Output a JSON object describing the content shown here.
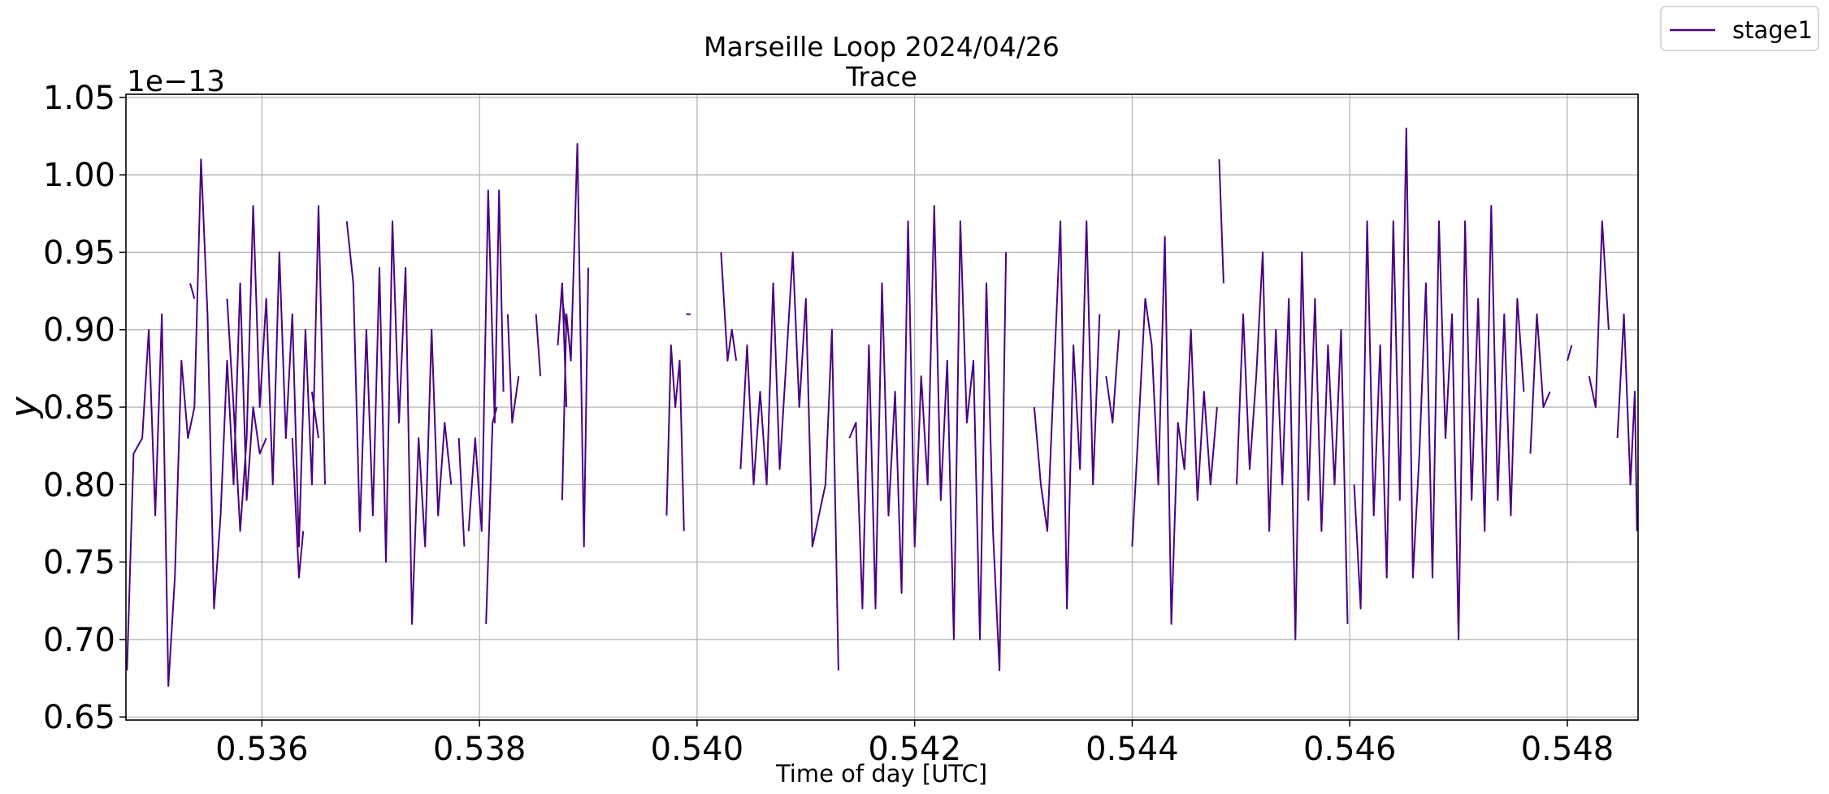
{
  "chart_data": {
    "type": "line",
    "title": "Marseille Loop 2024/04/26",
    "subtitle": "Trace",
    "xlabel": "Time of day [UTC]",
    "ylabel": "y",
    "y_offset_label": "1e−13",
    "xlim": [
      0.53475,
      0.54865
    ],
    "ylim": [
      0.648,
      1.052
    ],
    "x_ticks": [
      0.536,
      0.538,
      0.54,
      0.542,
      0.544,
      0.546,
      0.548
    ],
    "x_tick_labels": [
      "0.536",
      "0.538",
      "0.540",
      "0.542",
      "0.544",
      "0.546",
      "0.548"
    ],
    "y_ticks": [
      0.65,
      0.7,
      0.75,
      0.8,
      0.85,
      0.9,
      0.95,
      1.0,
      1.05
    ],
    "y_tick_labels": [
      "0.65",
      "0.70",
      "0.75",
      "0.80",
      "0.85",
      "0.90",
      "0.95",
      "1.00",
      "1.05"
    ],
    "grid": true,
    "legend_position": "outside top-right",
    "series": [
      {
        "name": "stage1",
        "color": "#4b0082",
        "segments": [
          [
            [
              0.53476,
              0.68
            ],
            [
              0.53482,
              0.82
            ],
            [
              0.5349,
              0.83
            ],
            [
              0.53496,
              0.9
            ],
            [
              0.53502,
              0.78
            ],
            [
              0.53508,
              0.91
            ],
            [
              0.53514,
              0.67
            ],
            [
              0.5352,
              0.74
            ],
            [
              0.53526,
              0.88
            ],
            [
              0.53532,
              0.83
            ],
            [
              0.53538,
              0.85
            ],
            [
              0.53544,
              1.01
            ],
            [
              0.5355,
              0.91
            ],
            [
              0.53556,
              0.72
            ],
            [
              0.53562,
              0.78
            ],
            [
              0.53568,
              0.88
            ],
            [
              0.53574,
              0.8
            ],
            [
              0.5358,
              0.93
            ],
            [
              0.53586,
              0.79
            ],
            [
              0.53592,
              0.85
            ],
            [
              0.53598,
              0.82
            ],
            [
              0.53604,
              0.83
            ]
          ],
          [
            [
              0.53534,
              0.93
            ],
            [
              0.53538,
              0.92
            ]
          ],
          [
            [
              0.53568,
              0.92
            ],
            [
              0.53574,
              0.85
            ],
            [
              0.5358,
              0.77
            ],
            [
              0.53586,
              0.83
            ],
            [
              0.53592,
              0.98
            ],
            [
              0.53598,
              0.85
            ],
            [
              0.53604,
              0.92
            ],
            [
              0.5361,
              0.8
            ],
            [
              0.53616,
              0.95
            ],
            [
              0.53622,
              0.83
            ],
            [
              0.53628,
              0.91
            ],
            [
              0.53634,
              0.76
            ],
            [
              0.5364,
              0.9
            ],
            [
              0.53646,
              0.8
            ],
            [
              0.53652,
              0.98
            ],
            [
              0.53658,
              0.8
            ]
          ],
          [
            [
              0.53628,
              0.83
            ],
            [
              0.53634,
              0.74
            ],
            [
              0.53638,
              0.77
            ]
          ],
          [
            [
              0.53646,
              0.86
            ],
            [
              0.53652,
              0.83
            ]
          ],
          [
            [
              0.53678,
              0.97
            ],
            [
              0.53684,
              0.93
            ],
            [
              0.5369,
              0.77
            ],
            [
              0.53696,
              0.9
            ],
            [
              0.53702,
              0.78
            ],
            [
              0.53708,
              0.94
            ],
            [
              0.53714,
              0.75
            ],
            [
              0.5372,
              0.97
            ],
            [
              0.53726,
              0.84
            ],
            [
              0.53732,
              0.94
            ],
            [
              0.53738,
              0.71
            ],
            [
              0.53744,
              0.83
            ],
            [
              0.5375,
              0.76
            ],
            [
              0.53756,
              0.9
            ],
            [
              0.53762,
              0.78
            ],
            [
              0.53768,
              0.84
            ],
            [
              0.53774,
              0.8
            ]
          ],
          [
            [
              0.5379,
              0.77
            ],
            [
              0.53796,
              0.83
            ],
            [
              0.53802,
              0.77
            ],
            [
              0.53808,
              0.99
            ],
            [
              0.53814,
              0.84
            ],
            [
              0.53818,
              0.99
            ],
            [
              0.53822,
              0.86
            ]
          ],
          [
            [
              0.53781,
              0.83
            ],
            [
              0.53786,
              0.76
            ]
          ],
          [
            [
              0.53806,
              0.71
            ],
            [
              0.53812,
              0.84
            ],
            [
              0.53816,
              0.85
            ]
          ],
          [
            [
              0.53826,
              0.91
            ],
            [
              0.5383,
              0.84
            ],
            [
              0.53836,
              0.87
            ]
          ],
          [
            [
              0.53852,
              0.91
            ],
            [
              0.53856,
              0.87
            ]
          ],
          [
            [
              0.53872,
              0.89
            ],
            [
              0.53876,
              0.93
            ],
            [
              0.5388,
              0.85
            ]
          ],
          [
            [
              0.53876,
              0.92
            ],
            [
              0.5388,
              0.9
            ]
          ],
          [
            [
              0.53876,
              0.79
            ],
            [
              0.5388,
              0.91
            ],
            [
              0.53884,
              0.88
            ],
            [
              0.5389,
              1.02
            ],
            [
              0.53896,
              0.76
            ],
            [
              0.539,
              0.94
            ]
          ],
          [
            [
              0.53972,
              0.78
            ],
            [
              0.53976,
              0.89
            ],
            [
              0.5398,
              0.85
            ],
            [
              0.53984,
              0.88
            ],
            [
              0.53988,
              0.77
            ]
          ],
          [
            [
              0.5399,
              0.91
            ],
            [
              0.53994,
              0.91
            ]
          ],
          [
            [
              0.54022,
              0.95
            ],
            [
              0.54028,
              0.88
            ],
            [
              0.54032,
              0.9
            ],
            [
              0.54036,
              0.88
            ]
          ],
          [
            [
              0.5404,
              0.81
            ],
            [
              0.54046,
              0.89
            ],
            [
              0.54052,
              0.8
            ],
            [
              0.54058,
              0.86
            ],
            [
              0.54064,
              0.8
            ],
            [
              0.5407,
              0.93
            ],
            [
              0.54076,
              0.81
            ],
            [
              0.54082,
              0.88
            ],
            [
              0.54088,
              0.95
            ],
            [
              0.54094,
              0.85
            ],
            [
              0.541,
              0.92
            ],
            [
              0.54106,
              0.76
            ],
            [
              0.54112,
              0.78
            ],
            [
              0.54118,
              0.8
            ],
            [
              0.54124,
              0.9
            ],
            [
              0.5413,
              0.68
            ]
          ],
          [
            [
              0.5414,
              0.83
            ],
            [
              0.54146,
              0.84
            ],
            [
              0.54152,
              0.72
            ],
            [
              0.54158,
              0.89
            ],
            [
              0.54164,
              0.72
            ],
            [
              0.5417,
              0.93
            ],
            [
              0.54176,
              0.78
            ],
            [
              0.54182,
              0.86
            ],
            [
              0.54188,
              0.73
            ],
            [
              0.54194,
              0.97
            ],
            [
              0.542,
              0.76
            ],
            [
              0.54206,
              0.87
            ],
            [
              0.54212,
              0.8
            ],
            [
              0.54218,
              0.98
            ],
            [
              0.54224,
              0.79
            ],
            [
              0.5423,
              0.88
            ],
            [
              0.54236,
              0.7
            ],
            [
              0.54242,
              0.97
            ],
            [
              0.54248,
              0.84
            ],
            [
              0.54254,
              0.88
            ],
            [
              0.5426,
              0.7
            ],
            [
              0.54266,
              0.93
            ],
            [
              0.54272,
              0.77
            ],
            [
              0.54278,
              0.68
            ],
            [
              0.54284,
              0.95
            ]
          ],
          [
            [
              0.5431,
              0.85
            ],
            [
              0.54316,
              0.8
            ],
            [
              0.54322,
              0.77
            ],
            [
              0.54328,
              0.87
            ],
            [
              0.54334,
              0.97
            ],
            [
              0.5434,
              0.72
            ],
            [
              0.54346,
              0.89
            ],
            [
              0.54352,
              0.81
            ],
            [
              0.54358,
              0.97
            ],
            [
              0.54364,
              0.8
            ],
            [
              0.5437,
              0.91
            ]
          ],
          [
            [
              0.54376,
              0.87
            ],
            [
              0.54382,
              0.84
            ],
            [
              0.54388,
              0.9
            ]
          ],
          [
            [
              0.544,
              0.76
            ],
            [
              0.54406,
              0.84
            ],
            [
              0.54412,
              0.92
            ],
            [
              0.54418,
              0.89
            ],
            [
              0.54424,
              0.8
            ],
            [
              0.5443,
              0.96
            ],
            [
              0.54436,
              0.71
            ],
            [
              0.54442,
              0.84
            ],
            [
              0.54448,
              0.81
            ],
            [
              0.54454,
              0.9
            ],
            [
              0.5446,
              0.79
            ],
            [
              0.54466,
              0.86
            ],
            [
              0.54472,
              0.8
            ],
            [
              0.54478,
              0.85
            ]
          ],
          [
            [
              0.5448,
              1.01
            ],
            [
              0.54484,
              0.93
            ]
          ],
          [
            [
              0.54496,
              0.8
            ],
            [
              0.54502,
              0.91
            ],
            [
              0.54508,
              0.81
            ],
            [
              0.54514,
              0.87
            ],
            [
              0.5452,
              0.95
            ],
            [
              0.54526,
              0.77
            ],
            [
              0.54532,
              0.9
            ],
            [
              0.54538,
              0.8
            ],
            [
              0.54544,
              0.92
            ],
            [
              0.5455,
              0.7
            ],
            [
              0.54556,
              0.95
            ],
            [
              0.54562,
              0.79
            ],
            [
              0.54568,
              0.92
            ],
            [
              0.54574,
              0.77
            ],
            [
              0.5458,
              0.89
            ],
            [
              0.54586,
              0.8
            ],
            [
              0.54592,
              0.9
            ],
            [
              0.54598,
              0.71
            ]
          ],
          [
            [
              0.54604,
              0.8
            ],
            [
              0.5461,
              0.72
            ],
            [
              0.54616,
              0.97
            ],
            [
              0.54622,
              0.78
            ],
            [
              0.54628,
              0.89
            ],
            [
              0.54634,
              0.74
            ],
            [
              0.5464,
              0.97
            ],
            [
              0.54646,
              0.79
            ],
            [
              0.54652,
              1.03
            ],
            [
              0.54658,
              0.74
            ],
            [
              0.54664,
              0.82
            ],
            [
              0.5467,
              0.93
            ],
            [
              0.54676,
              0.74
            ],
            [
              0.54682,
              0.97
            ],
            [
              0.54688,
              0.83
            ],
            [
              0.54694,
              0.91
            ],
            [
              0.547,
              0.7
            ],
            [
              0.54706,
              0.97
            ],
            [
              0.54712,
              0.79
            ],
            [
              0.54718,
              0.92
            ],
            [
              0.54724,
              0.77
            ],
            [
              0.5473,
              0.98
            ],
            [
              0.54736,
              0.79
            ],
            [
              0.54742,
              0.91
            ],
            [
              0.54748,
              0.78
            ],
            [
              0.54754,
              0.92
            ],
            [
              0.5476,
              0.86
            ]
          ],
          [
            [
              0.54766,
              0.82
            ],
            [
              0.54772,
              0.91
            ],
            [
              0.54778,
              0.85
            ],
            [
              0.54784,
              0.86
            ]
          ],
          [
            [
              0.548,
              0.88
            ],
            [
              0.54804,
              0.89
            ]
          ],
          [
            [
              0.5482,
              0.87
            ],
            [
              0.54826,
              0.85
            ],
            [
              0.54832,
              0.97
            ],
            [
              0.54838,
              0.9
            ]
          ],
          [
            [
              0.54846,
              0.83
            ],
            [
              0.54852,
              0.91
            ],
            [
              0.54858,
              0.8
            ],
            [
              0.54862,
              0.86
            ],
            [
              0.54864,
              0.77
            ]
          ]
        ]
      }
    ]
  }
}
